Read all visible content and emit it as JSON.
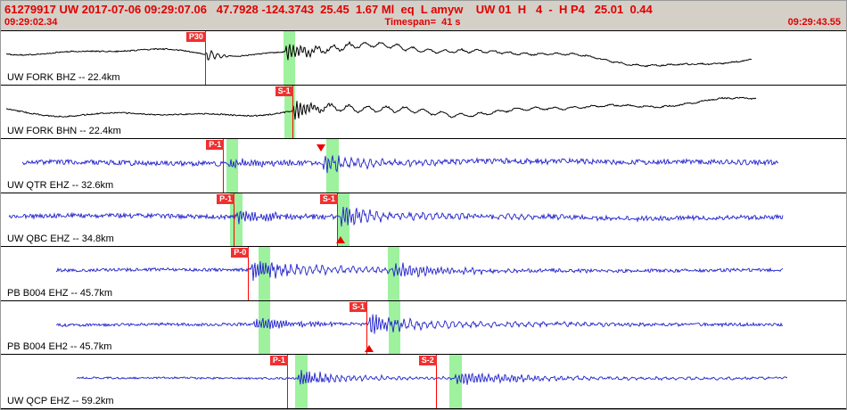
{
  "header": {
    "line1": "61279917 UW 2017-07-06 09:29:07.06   47.7928 -124.3743  25.45  1.67 Ml  eq  L amyw    UW 01  H   4  -  H P4   25.01  0.44",
    "start_time": "09:29:02.34",
    "timespan": "Timespan=  41 s",
    "end_time": "09:29:43.55"
  },
  "colors": {
    "chrome_bg": "#d4d0c8",
    "panel_bg": "#ffffff",
    "header_text": "#e00000",
    "pick_red": "#ff0000",
    "band_green": "#9ef29e",
    "trace_black": "#000000",
    "trace_blue": "#2020cc"
  },
  "chart_data": {
    "type": "line",
    "title": "Seismic waveforms, event 61279917, 7 station channels, 41 s window",
    "x_start_label": "09:29:02.34",
    "x_end_label": "09:29:43.55",
    "traces": [
      {
        "label": "UW FORK BHZ -- 22.4km",
        "color": "#000000",
        "seed": 3,
        "lf": 8.5,
        "hf": 0.7,
        "start": 0.006,
        "end": 0.888,
        "bursts": [
          {
            "pos": 0.242,
            "amp": 9,
            "freq": 0.9,
            "decay": 10,
            "rise": 2
          },
          {
            "pos": 0.336,
            "amp": 13,
            "freq": 1.5,
            "decay": 22,
            "rise": 2
          },
          {
            "pos": 0.35,
            "amp": 5,
            "freq": 0.35,
            "decay": 200,
            "rise": 10
          }
        ],
        "picks": [
          {
            "label": "P30",
            "pos": 0.2415
          }
        ],
        "bands": [
          {
            "pos": 0.3345,
            "width": 0.0135
          }
        ],
        "markers": []
      },
      {
        "label": "UW FORK BHN -- 22.4km",
        "color": "#000000",
        "seed": 7,
        "lf": 8,
        "hf": 0.7,
        "start": 0.006,
        "end": 0.893,
        "bursts": [
          {
            "pos": 0.345,
            "amp": 15,
            "freq": 1.6,
            "decay": 18,
            "rise": 2
          },
          {
            "pos": 0.36,
            "amp": 5,
            "freq": 0.3,
            "decay": 220,
            "rise": 20
          }
        ],
        "picks": [
          {
            "label": "S-1",
            "pos": 0.3445
          }
        ],
        "bands": [
          {
            "pos": 0.3355,
            "width": 0.013
          }
        ],
        "markers": []
      },
      {
        "label": "UW QTR EHZ -- 32.6km",
        "color": "#2020cc",
        "seed": 13,
        "lf": 1.2,
        "hf": 2.8,
        "start": 0.025,
        "end": 0.92,
        "bursts": [
          {
            "pos": 0.266,
            "amp": 6,
            "freq": 1.9,
            "decay": 55,
            "rise": 3
          },
          {
            "pos": 0.381,
            "amp": 15,
            "freq": 1.7,
            "decay": 16,
            "rise": 2
          },
          {
            "pos": 0.388,
            "amp": 5.5,
            "freq": 0.9,
            "decay": 120,
            "rise": 6
          }
        ],
        "picks": [
          {
            "label": "P-1",
            "pos": 0.263
          }
        ],
        "bands": [
          {
            "pos": 0.2665,
            "width": 0.014
          },
          {
            "pos": 0.3855,
            "width": 0.014
          }
        ],
        "markers": [
          {
            "pos": 0.379,
            "dir": "down",
            "top": 0.1
          }
        ]
      },
      {
        "label": "UW QBC EHZ -- 34.8km",
        "color": "#2020cc",
        "seed": 17,
        "lf": 1.2,
        "hf": 2.6,
        "start": 0.01,
        "end": 0.925,
        "bursts": [
          {
            "pos": 0.2775,
            "amp": 7,
            "freq": 1.9,
            "decay": 60,
            "rise": 3
          },
          {
            "pos": 0.401,
            "amp": 16,
            "freq": 1.7,
            "decay": 18,
            "rise": 2
          },
          {
            "pos": 0.41,
            "amp": 5.5,
            "freq": 0.85,
            "decay": 130,
            "rise": 8
          }
        ],
        "picks": [
          {
            "label": "P-1",
            "pos": 0.2755
          },
          {
            "label": "S-1",
            "pos": 0.3975
          }
        ],
        "bands": [
          {
            "pos": 0.2715,
            "width": 0.014
          },
          {
            "pos": 0.3985,
            "width": 0.014
          }
        ],
        "markers": [
          {
            "pos": 0.402,
            "dir": "up",
            "bottom": 0.06
          }
        ]
      },
      {
        "label": "PB B004 EHZ -- 45.7km",
        "color": "#2020cc",
        "seed": 23,
        "lf": 0.8,
        "hf": 1.8,
        "start": 0.065,
        "end": 0.925,
        "bursts": [
          {
            "pos": 0.2955,
            "amp": 14,
            "freq": 2.0,
            "decay": 30,
            "rise": 2
          },
          {
            "pos": 0.31,
            "amp": 6,
            "freq": 0.9,
            "decay": 150,
            "rise": 10
          },
          {
            "pos": 0.462,
            "amp": 9,
            "freq": 1.6,
            "decay": 55,
            "rise": 4
          }
        ],
        "picks": [
          {
            "label": "P-0",
            "pos": 0.2925
          }
        ],
        "bands": [
          {
            "pos": 0.3045,
            "width": 0.014
          },
          {
            "pos": 0.4575,
            "width": 0.014
          }
        ],
        "markers": []
      },
      {
        "label": "PB B004 EH2 -- 45.7km",
        "color": "#2020cc",
        "seed": 29,
        "lf": 0.8,
        "hf": 1.7,
        "start": 0.065,
        "end": 0.925,
        "bursts": [
          {
            "pos": 0.298,
            "amp": 8,
            "freq": 1.9,
            "decay": 55,
            "rise": 3
          },
          {
            "pos": 0.435,
            "amp": 15,
            "freq": 1.8,
            "decay": 25,
            "rise": 2
          },
          {
            "pos": 0.448,
            "amp": 5.5,
            "freq": 0.8,
            "decay": 150,
            "rise": 10
          }
        ],
        "picks": [
          {
            "label": "S-1",
            "pos": 0.4325
          }
        ],
        "bands": [
          {
            "pos": 0.3045,
            "width": 0.014
          },
          {
            "pos": 0.4585,
            "width": 0.014
          }
        ],
        "markers": [
          {
            "pos": 0.436,
            "dir": "up",
            "bottom": 0.05
          }
        ]
      },
      {
        "label": "UW QCP EHZ -- 59.2km",
        "color": "#2020cc",
        "seed": 31,
        "lf": 0.5,
        "hf": 1.1,
        "start": 0.09,
        "end": 0.93,
        "bursts": [
          {
            "pos": 0.3515,
            "amp": 12,
            "freq": 2.1,
            "decay": 28,
            "rise": 2
          },
          {
            "pos": 0.362,
            "amp": 4.5,
            "freq": 1.0,
            "decay": 110,
            "rise": 8
          },
          {
            "pos": 0.5355,
            "amp": 8,
            "freq": 1.7,
            "decay": 70,
            "rise": 4
          },
          {
            "pos": 0.56,
            "amp": 2.5,
            "freq": 0.7,
            "decay": 260,
            "rise": 20
          }
        ],
        "picks": [
          {
            "label": "P-1",
            "pos": 0.3385
          },
          {
            "label": "S-2",
            "pos": 0.5145
          }
        ],
        "bands": [
          {
            "pos": 0.3485,
            "width": 0.014
          },
          {
            "pos": 0.531,
            "width": 0.014
          }
        ],
        "markers": []
      }
    ]
  }
}
